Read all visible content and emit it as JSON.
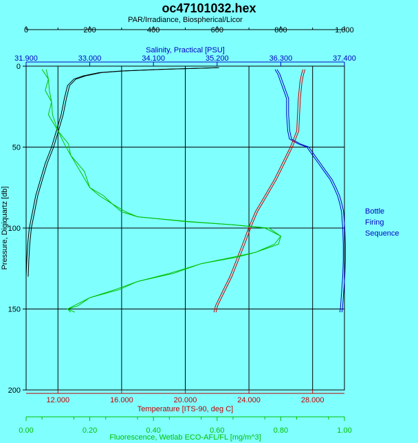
{
  "chart_data": {
    "type": "line",
    "title": "oc47101032.hex",
    "y_axis": {
      "label": "Pressure, Digiquartz [db]",
      "range": [
        0,
        200
      ],
      "inverted": true,
      "ticks": [
        "0",
        "50",
        "100",
        "150",
        "200"
      ],
      "tick_values": [
        0,
        50,
        100,
        150,
        200
      ]
    },
    "x_axes": [
      {
        "key": "par",
        "label": "PAR/Irradiance, Biospherical/Licor",
        "position": "top",
        "color": "#000000",
        "range": [
          0,
          1000
        ],
        "ticks": [
          "0",
          "200",
          "400",
          "600",
          "800",
          "1,000"
        ],
        "tick_values": [
          0,
          200,
          400,
          600,
          800,
          1000
        ]
      },
      {
        "key": "salinity",
        "label": "Salinity, Practical [PSU]",
        "position": "top",
        "color": "#0000c0",
        "range": [
          31.9,
          37.4
        ],
        "ticks": [
          "31.900",
          "33.000",
          "34.100",
          "35.200",
          "36.300",
          "37.400"
        ],
        "tick_values": [
          31.9,
          33.0,
          34.1,
          35.2,
          36.3,
          37.4
        ]
      },
      {
        "key": "temperature",
        "label": "Temperature [ITS-90, deg C]",
        "position": "bottom",
        "color": "#c00000",
        "range": [
          10.0,
          30.0
        ],
        "ticks": [
          "12.000",
          "16.000",
          "20.000",
          "24.000",
          "28.000"
        ],
        "tick_values": [
          12.0,
          16.0,
          20.0,
          24.0,
          28.0
        ]
      },
      {
        "key": "fluorescence",
        "label": "Fluorescence, Wetlab ECO-AFL/FL [mg/m^3]",
        "position": "bottom",
        "color": "#00c000",
        "range": [
          0.0,
          1.0
        ],
        "ticks": [
          "0.00",
          "0.20",
          "0.40",
          "0.60",
          "0.80",
          "1.00"
        ],
        "tick_values": [
          0.0,
          0.2,
          0.4,
          0.6,
          0.8,
          1.0
        ]
      }
    ],
    "grid": true,
    "side_label": [
      "Bottle",
      "Firing",
      "Sequence"
    ],
    "series": [
      {
        "axis": "par",
        "color": "#000000",
        "points": [
          [
            600,
            1
          ],
          [
            420,
            2
          ],
          [
            300,
            3
          ],
          [
            230,
            4
          ],
          [
            180,
            6
          ],
          [
            150,
            8
          ],
          [
            130,
            12
          ],
          [
            120,
            20
          ],
          [
            110,
            30
          ],
          [
            95,
            40
          ],
          [
            80,
            50
          ],
          [
            60,
            60
          ],
          [
            45,
            70
          ],
          [
            30,
            80
          ],
          [
            20,
            90
          ],
          [
            10,
            100
          ],
          [
            5,
            110
          ],
          [
            2,
            120
          ],
          [
            0,
            130
          ]
        ]
      },
      {
        "axis": "salinity",
        "color": "#0000c0",
        "points": [
          [
            36.2,
            2
          ],
          [
            36.25,
            5
          ],
          [
            36.3,
            10
          ],
          [
            36.35,
            15
          ],
          [
            36.4,
            20
          ],
          [
            36.4,
            30
          ],
          [
            36.42,
            40
          ],
          [
            36.45,
            45
          ],
          [
            36.6,
            48
          ],
          [
            36.75,
            50
          ],
          [
            36.85,
            55
          ],
          [
            36.95,
            60
          ],
          [
            37.05,
            65
          ],
          [
            37.15,
            70
          ],
          [
            37.22,
            75
          ],
          [
            37.28,
            80
          ],
          [
            37.32,
            85
          ],
          [
            37.35,
            90
          ],
          [
            37.36,
            95
          ],
          [
            37.37,
            100
          ],
          [
            37.38,
            110
          ],
          [
            37.38,
            120
          ],
          [
            37.37,
            130
          ],
          [
            37.35,
            140
          ],
          [
            37.33,
            150
          ],
          [
            37.32,
            152
          ]
        ]
      },
      {
        "axis": "temperature",
        "color": "#c00000",
        "points": [
          [
            27.4,
            2
          ],
          [
            27.3,
            5
          ],
          [
            27.2,
            10
          ],
          [
            27.1,
            20
          ],
          [
            27.05,
            30
          ],
          [
            27.0,
            40
          ],
          [
            26.6,
            50
          ],
          [
            26.1,
            60
          ],
          [
            25.6,
            70
          ],
          [
            25.0,
            80
          ],
          [
            24.4,
            90
          ],
          [
            24.1,
            97
          ],
          [
            23.9,
            102
          ],
          [
            23.6,
            110
          ],
          [
            23.2,
            120
          ],
          [
            22.8,
            130
          ],
          [
            22.3,
            140
          ],
          [
            21.9,
            148
          ],
          [
            21.8,
            152
          ]
        ]
      },
      {
        "axis": "fluorescence",
        "color": "#00c000",
        "points": [
          [
            0.05,
            2
          ],
          [
            0.07,
            8
          ],
          [
            0.06,
            15
          ],
          [
            0.08,
            22
          ],
          [
            0.07,
            30
          ],
          [
            0.1,
            40
          ],
          [
            0.12,
            48
          ],
          [
            0.14,
            55
          ],
          [
            0.17,
            65
          ],
          [
            0.2,
            75
          ],
          [
            0.23,
            80
          ],
          [
            0.27,
            85
          ],
          [
            0.3,
            90
          ],
          [
            0.35,
            93
          ],
          [
            0.5,
            96
          ],
          [
            0.65,
            98
          ],
          [
            0.75,
            100
          ],
          [
            0.8,
            105
          ],
          [
            0.78,
            110
          ],
          [
            0.72,
            115
          ],
          [
            0.65,
            118
          ],
          [
            0.55,
            122
          ],
          [
            0.45,
            128
          ],
          [
            0.35,
            133
          ],
          [
            0.28,
            138
          ],
          [
            0.2,
            143
          ],
          [
            0.15,
            148
          ],
          [
            0.13,
            150
          ],
          [
            0.14,
            152
          ]
        ]
      }
    ]
  }
}
